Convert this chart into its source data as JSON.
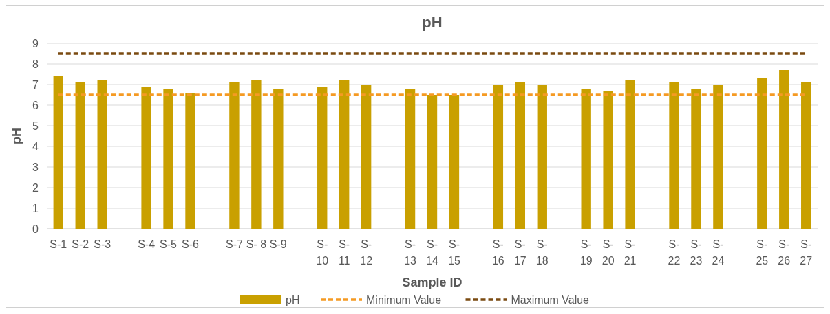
{
  "chart_data": {
    "type": "bar",
    "title": "pH",
    "xlabel": "Sample ID",
    "ylabel": "pH",
    "categories": [
      "S-1",
      "S-2",
      "S-3",
      null,
      "S-4",
      "S-5",
      "S-6",
      null,
      "S-7",
      "S- 8",
      "S-9",
      null,
      "S-10",
      "S-11",
      "S-12",
      null,
      "S-13",
      "S-14",
      "S-15",
      null,
      "S-16",
      "S-17",
      "S-18",
      null,
      "S-19",
      "S-20",
      "S-21",
      null,
      "S-22",
      "S-23",
      "S-24",
      null,
      "S-25",
      "S-26",
      "S-27"
    ],
    "series": [
      {
        "name": "pH",
        "color": "#c9a000",
        "values": [
          7.4,
          7.1,
          7.2,
          null,
          6.9,
          6.8,
          6.6,
          null,
          7.1,
          7.2,
          6.8,
          null,
          6.9,
          7.2,
          7.0,
          null,
          6.8,
          6.5,
          6.5,
          null,
          7.0,
          7.1,
          7.0,
          null,
          6.8,
          6.7,
          7.2,
          null,
          7.1,
          6.8,
          7.0,
          null,
          7.3,
          7.7,
          7.1
        ]
      },
      {
        "name": "Minimum Value",
        "type": "line",
        "color": "#f59a23",
        "line_style": "dashed",
        "values": [
          6.5,
          6.5,
          6.5,
          6.5,
          6.5,
          6.5,
          6.5,
          6.5,
          6.5,
          6.5,
          6.5,
          6.5,
          6.5,
          6.5,
          6.5,
          6.5,
          6.5,
          6.5,
          6.5,
          6.5,
          6.5,
          6.5,
          6.5,
          6.5,
          6.5,
          6.5,
          6.5,
          6.5,
          6.5,
          6.5,
          6.5,
          6.5,
          6.5,
          6.5,
          6.5
        ]
      },
      {
        "name": "Maximum Value",
        "type": "line",
        "color": "#7a4a10",
        "line_style": "dashed",
        "values": [
          8.5,
          8.5,
          8.5,
          8.5,
          8.5,
          8.5,
          8.5,
          8.5,
          8.5,
          8.5,
          8.5,
          8.5,
          8.5,
          8.5,
          8.5,
          8.5,
          8.5,
          8.5,
          8.5,
          8.5,
          8.5,
          8.5,
          8.5,
          8.5,
          8.5,
          8.5,
          8.5,
          8.5,
          8.5,
          8.5,
          8.5,
          8.5,
          8.5,
          8.5,
          8.5
        ]
      }
    ],
    "ylim": [
      0,
      9
    ],
    "yticks": [
      0,
      1,
      2,
      3,
      4,
      5,
      6,
      7,
      8,
      9
    ],
    "grid": "y",
    "legend": "bottom"
  }
}
